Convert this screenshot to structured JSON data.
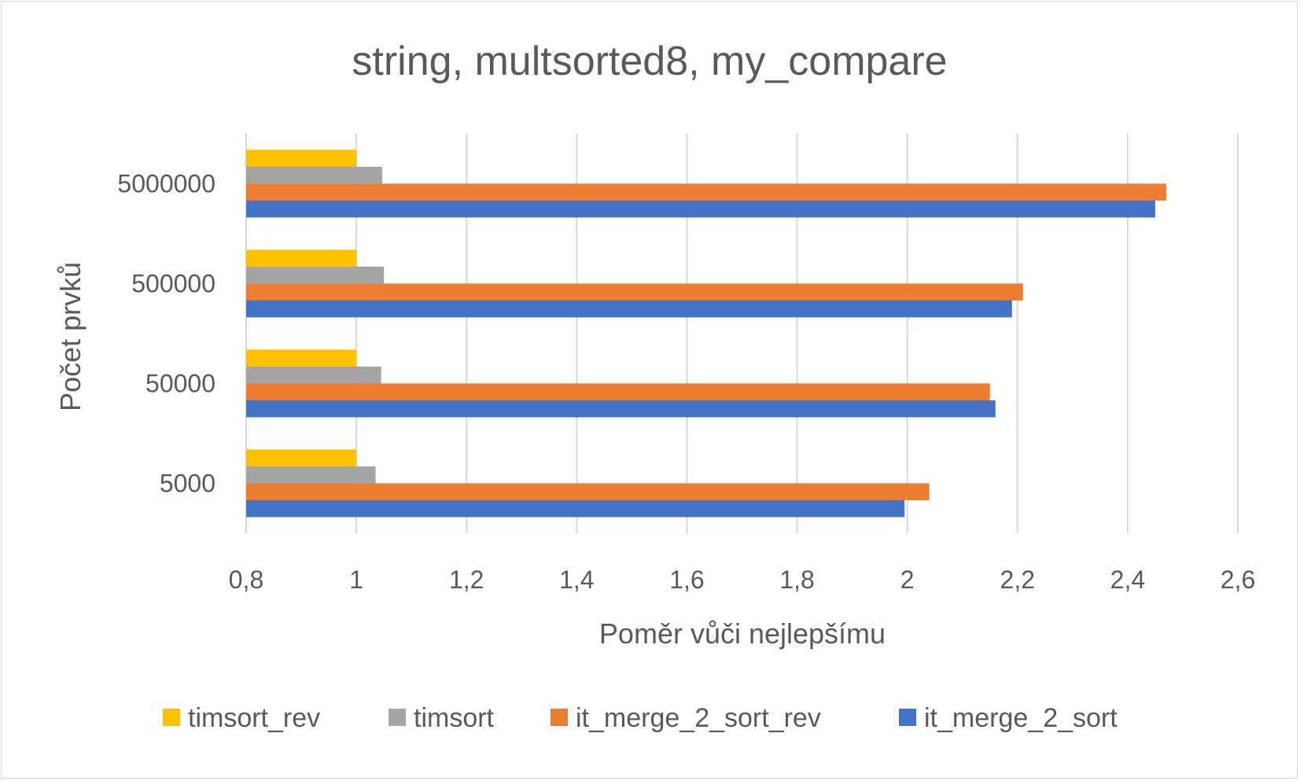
{
  "chart_data": {
    "type": "bar",
    "orientation": "horizontal",
    "title": "string, multsorted8, my_compare",
    "xlabel": "Poměr vůči nejlepšímu",
    "ylabel": "Počet prvků",
    "xlim": [
      0.8,
      2.6
    ],
    "xticks": [
      0.8,
      1.0,
      1.2,
      1.4,
      1.6,
      1.8,
      2.0,
      2.2,
      2.4,
      2.6
    ],
    "xtick_labels": [
      "0,8",
      "1",
      "1,2",
      "1,4",
      "1,6",
      "1,8",
      "2",
      "2,2",
      "2,4",
      "2,6"
    ],
    "categories": [
      "5000",
      "50000",
      "500000",
      "5000000"
    ],
    "grid": "vertical",
    "legend_position": "bottom",
    "series": [
      {
        "name": "timsort_rev",
        "color": "#FFC000",
        "values": [
          1.0,
          1.0,
          1.0,
          1.0
        ]
      },
      {
        "name": "timsort",
        "color": "#A5A5A5",
        "values": [
          1.035,
          1.045,
          1.05,
          1.047
        ]
      },
      {
        "name": "it_merge_2_sort_rev",
        "color": "#ED7D31",
        "values": [
          2.04,
          2.15,
          2.21,
          2.47
        ]
      },
      {
        "name": "it_merge_2_sort",
        "color": "#4472C4",
        "values": [
          1.995,
          2.16,
          2.19,
          2.45
        ]
      }
    ]
  }
}
